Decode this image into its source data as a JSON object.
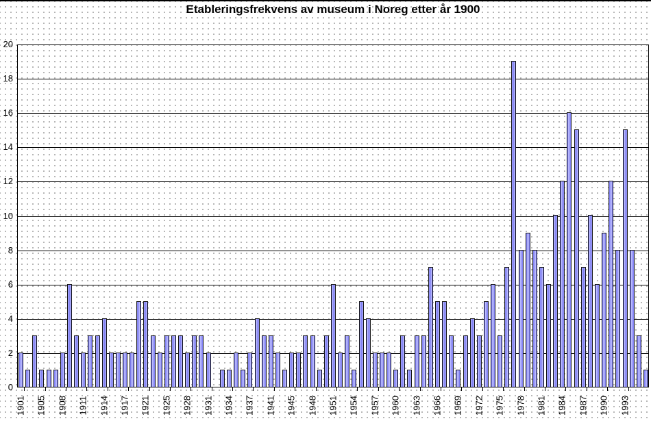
{
  "title": "Etableringsfrekvens av museum i Noreg etter år 1900",
  "chart_data": {
    "type": "bar",
    "title": "Etableringsfrekvens av museum i Noreg etter år 1900",
    "xlabel": "",
    "ylabel": "",
    "ylim": [
      0,
      20
    ],
    "y_ticks": [
      0,
      2,
      4,
      6,
      8,
      10,
      12,
      14,
      16,
      18,
      20
    ],
    "grid": "horizontal solid black lines at every y tick",
    "legend": "none",
    "x_tick_label_every": 3,
    "x_tick_labels": [
      "1901",
      "1905",
      "1908",
      "1911",
      "1914",
      "1917",
      "1921",
      "1925",
      "1928",
      "1931",
      "1934",
      "1937",
      "1941",
      "1945",
      "1948",
      "1951",
      "1954",
      "1957",
      "1960",
      "1963",
      "1966",
      "1969",
      "1972",
      "1975",
      "1978",
      "1981",
      "1984",
      "1987",
      "1990",
      "1993"
    ],
    "values": [
      2,
      1,
      3,
      1,
      1,
      1,
      2,
      6,
      3,
      2,
      3,
      3,
      4,
      2,
      2,
      2,
      2,
      5,
      5,
      3,
      2,
      3,
      3,
      3,
      2,
      3,
      3,
      2,
      0,
      1,
      1,
      2,
      1,
      2,
      4,
      3,
      3,
      2,
      1,
      2,
      2,
      3,
      3,
      1,
      3,
      6,
      2,
      3,
      1,
      5,
      4,
      2,
      2,
      2,
      1,
      3,
      1,
      3,
      3,
      7,
      5,
      5,
      3,
      1,
      3,
      4,
      3,
      5,
      6,
      3,
      7,
      19,
      8,
      9,
      8,
      7,
      6,
      10,
      12,
      16,
      15,
      7,
      10,
      6,
      9,
      12,
      8,
      15,
      8,
      3,
      1
    ],
    "bar_color_light": "#bbbbff",
    "bar_color_dark": "#7f7ff0",
    "bar_border_color": "#181818",
    "gridline_color": "#000000",
    "text_color": "#000000",
    "background_color": "#ffffff",
    "background_dot_color": "#9d9d9d"
  }
}
